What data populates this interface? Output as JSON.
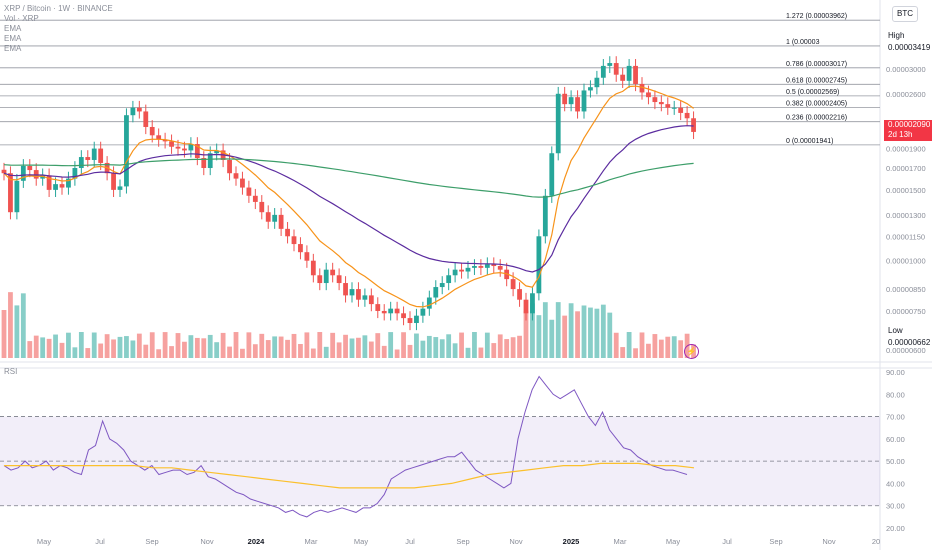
{
  "legend": {
    "symbol": "XRP / Bitcoin · 1W · BINANCE",
    "vol": "Vol · XRP",
    "ema1": "EMA",
    "ema2": "EMA",
    "ema3": "EMA"
  },
  "currency_button": "BTC",
  "current_price": {
    "value": "0.00002090",
    "countdown": "2d 13h"
  },
  "high": {
    "label": "High",
    "value": "0.00003419"
  },
  "low": {
    "label": "Low",
    "value": "0.00000662"
  },
  "rsi_title": "RSI",
  "colors": {
    "up": "#26a69a",
    "down": "#ef5350",
    "ema_fast": "#f7931a",
    "ema_mid": "#5b2c9f",
    "ema_slow": "#3d9e6a",
    "rsi": "#7e57c2",
    "rsi_ma": "#fbc02d"
  },
  "chart_data": [
    {
      "type": "candlestick",
      "symbol": "XRP / Bitcoin · 1W · BINANCE",
      "log_scale": true,
      "x_ticks": [
        "May",
        "Jul",
        "Sep",
        "Nov",
        "2024",
        "Mar",
        "May",
        "Jul",
        "Sep",
        "Nov",
        "2025",
        "Mar",
        "May",
        "Jul",
        "Sep",
        "Nov",
        "20"
      ],
      "y_ticks": [
        "0.00003000",
        "0.00002600",
        "0.00002200",
        "0.00001900",
        "0.00001700",
        "0.00001500",
        "0.00001300",
        "0.00001150",
        "0.00001000",
        "0.00000850",
        "0.00000750",
        "0.00000600"
      ],
      "fib_levels": [
        {
          "label": "1.272 (0.00003962)",
          "value": 3.962e-05
        },
        {
          "label": "1 (0.00003",
          "value": 3.419e-05
        },
        {
          "label": "0.786 (0.00003017)",
          "value": 3.017e-05
        },
        {
          "label": "0.618 (0.00002745)",
          "value": 2.745e-05
        },
        {
          "label": "0.5 (0.00002569)",
          "value": 2.569e-05
        },
        {
          "label": "0.382 (0.00002405)",
          "value": 2.405e-05
        },
        {
          "label": "0.236 (0.00002216)",
          "value": 2.216e-05
        },
        {
          "label": "0 (0.00001941)",
          "value": 1.941e-05
        }
      ],
      "close_series": [
        1.65e-05,
        1.32e-05,
        1.58e-05,
        1.72e-05,
        1.68e-05,
        1.6e-05,
        1.63e-05,
        1.5e-05,
        1.55e-05,
        1.52e-05,
        1.6e-05,
        1.7e-05,
        1.81e-05,
        1.78e-05,
        1.9e-05,
        1.75e-05,
        1.65e-05,
        1.5e-05,
        1.53e-05,
        2.3e-05,
        2.4e-05,
        2.35e-05,
        2.15e-05,
        2.05e-05,
        2e-05,
        1.98e-05,
        1.92e-05,
        1.9e-05,
        1.88e-05,
        1.95e-05,
        1.8e-05,
        1.7e-05,
        1.85e-05,
        1.88e-05,
        1.78e-05,
        1.65e-05,
        1.6e-05,
        1.52e-05,
        1.45e-05,
        1.4e-05,
        1.32e-05,
        1.25e-05,
        1.3e-05,
        1.2e-05,
        1.15e-05,
        1.1e-05,
        1.05e-05,
        1e-05,
        9.2e-06,
        8.8e-06,
        9.5e-06,
        9.2e-06,
        8.8e-06,
        8.2e-06,
        8.5e-06,
        8e-06,
        8.2e-06,
        7.8e-06,
        7.5e-06,
        7.4e-06,
        7.6e-06,
        7.4e-06,
        7.2e-06,
        7e-06,
        7.3e-06,
        7.6e-06,
        8.1e-06,
        8.6e-06,
        8.8e-06,
        9.2e-06,
        9.5e-06,
        9.4e-06,
        9.6e-06,
        9.7e-06,
        9.6e-06,
        9.8e-06,
        9.7e-06,
        9.5e-06,
        9e-06,
        8.5e-06,
        8e-06,
        7.4e-06,
        8.3e-06,
        1.15e-05,
        1.45e-05,
        1.85e-05,
        2.6e-05,
        2.45e-05,
        2.55e-05,
        2.35e-05,
        2.65e-05,
        2.7e-05,
        2.85e-05,
        3.05e-05,
        3.1e-05,
        2.9e-05,
        2.8e-05,
        3.05e-05,
        2.75e-05,
        2.62e-05,
        2.55e-05,
        2.48e-05,
        2.45e-05,
        2.4e-05,
        2.4e-05,
        2.33e-05,
        2.26e-05,
        2.09e-05
      ],
      "volume_ticks": [],
      "rsi": {
        "y_ticks": [
          "90.00",
          "80.00",
          "70.00",
          "60.00",
          "50.00",
          "40.00",
          "30.00",
          "20.00"
        ],
        "upper_band": 70,
        "mid_band": 50,
        "lower_band": 30,
        "values": [
          48,
          46,
          47,
          50,
          47,
          48,
          50,
          46,
          48,
          47,
          45,
          44,
          55,
          57,
          68,
          60,
          58,
          55,
          50,
          48,
          46,
          48,
          44,
          45,
          46,
          46,
          44,
          45,
          48,
          43,
          42,
          40,
          38,
          36,
          35,
          33,
          32,
          31,
          30,
          29,
          27,
          28,
          26,
          25,
          27,
          28,
          27,
          28,
          29,
          28,
          27,
          29,
          29,
          31,
          35,
          42,
          44,
          46,
          47,
          48,
          49,
          50,
          51,
          52,
          52,
          54,
          50,
          46,
          44,
          42,
          40,
          38,
          40,
          60,
          72,
          82,
          88,
          84,
          80,
          78,
          80,
          82,
          76,
          70,
          66,
          72,
          64,
          60,
          56,
          55,
          52,
          50,
          48,
          47,
          46,
          46,
          45,
          44
        ],
        "ma_values": [
          48,
          48,
          48,
          48,
          48,
          48,
          48,
          48,
          47,
          47,
          46,
          45,
          44,
          43,
          42,
          41,
          40,
          39,
          38,
          38,
          38,
          38,
          38,
          39,
          40,
          42,
          44,
          45,
          46,
          47,
          48,
          48,
          49,
          49,
          49,
          48,
          48,
          47
        ]
      }
    }
  ]
}
